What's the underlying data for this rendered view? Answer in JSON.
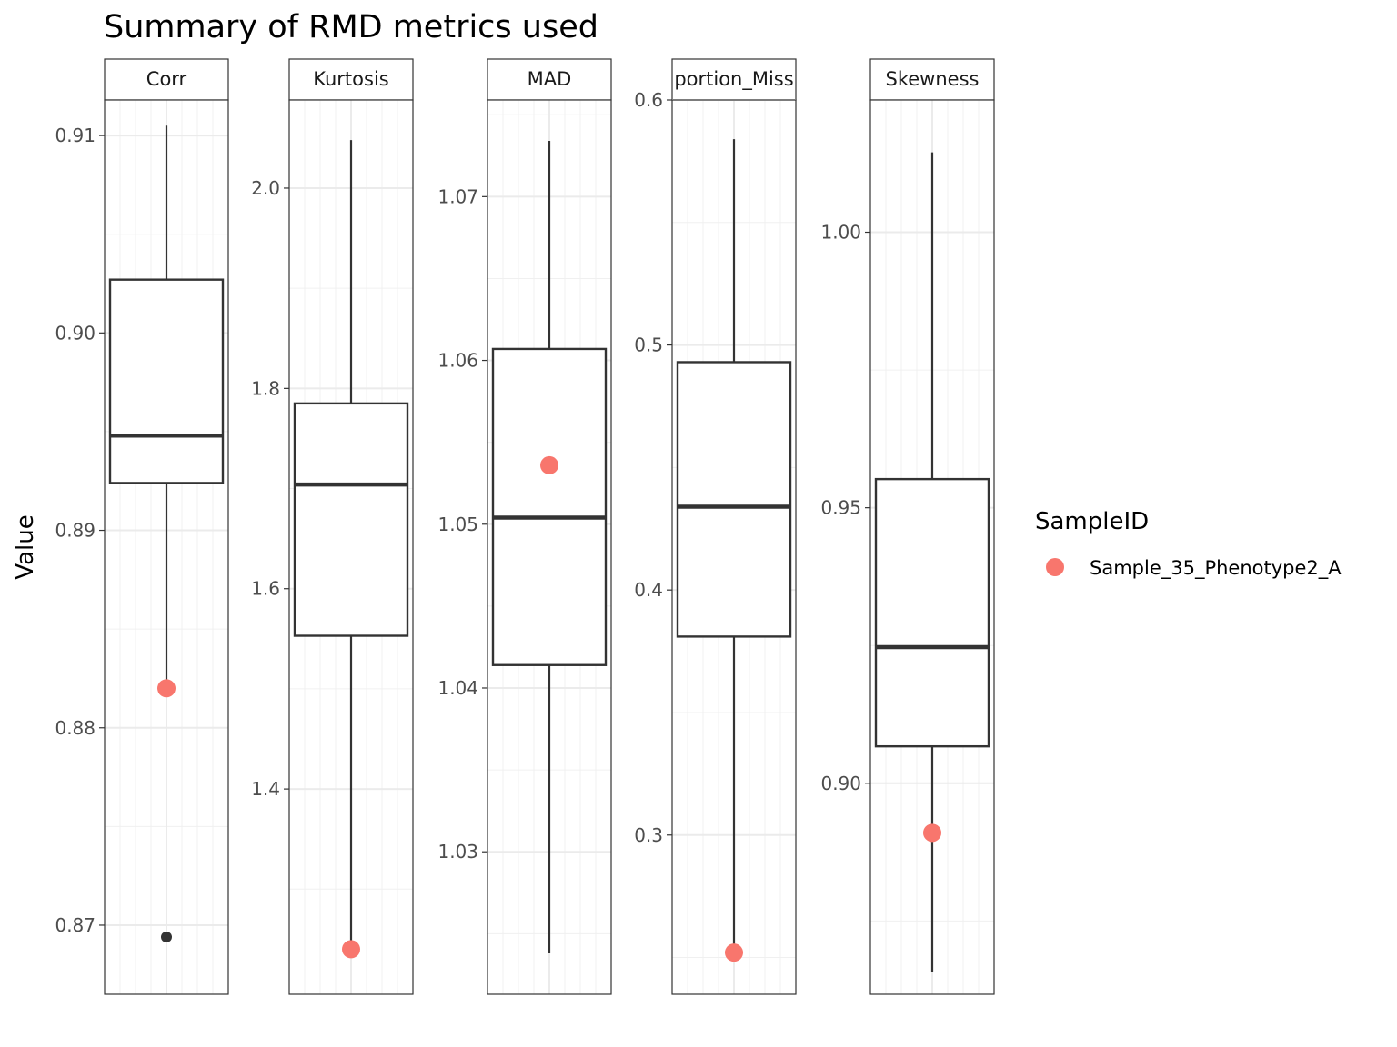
{
  "chart_data": {
    "type": "boxplot",
    "title": "Summary of RMD metrics used",
    "xlabel": "",
    "ylabel": "Value",
    "grid": true,
    "legend": {
      "title": "SampleID",
      "position": "right",
      "entries": [
        {
          "label": "Sample_35_Phenotype2_A",
          "color": "#F8766D"
        }
      ]
    },
    "colors": {
      "highlight": "#F8766D",
      "box": "#333333",
      "outlier": "#333333"
    },
    "panels": [
      {
        "name": "Corr",
        "ylim": [
          0.8665,
          0.9118
        ],
        "ticks": [
          0.87,
          0.88,
          0.89,
          0.9,
          0.91
        ],
        "tick_labels": [
          "0.87",
          "0.88",
          "0.89",
          "0.90",
          "0.91"
        ],
        "box": {
          "whisker_low": 0.8824,
          "q1": 0.8924,
          "median": 0.8948,
          "q3": 0.9027,
          "whisker_high": 0.9105
        },
        "outliers": [
          0.8694
        ],
        "highlight": 0.882
      },
      {
        "name": "Kurtosis",
        "ylim": [
          1.195,
          2.088
        ],
        "ticks": [
          1.4,
          1.6,
          1.8,
          2.0
        ],
        "tick_labels": [
          "1.4",
          "1.6",
          "1.8",
          "2.0"
        ],
        "box": {
          "whisker_low": 1.24,
          "q1": 1.553,
          "median": 1.704,
          "q3": 1.785,
          "whisker_high": 2.048
        },
        "outliers": [],
        "highlight": 1.24
      },
      {
        "name": "MAD",
        "ylim": [
          1.0213,
          1.0759
        ],
        "ticks": [
          1.03,
          1.04,
          1.05,
          1.06,
          1.07
        ],
        "tick_labels": [
          "1.03",
          "1.04",
          "1.05",
          "1.06",
          "1.07"
        ],
        "box": {
          "whisker_low": 1.0238,
          "q1": 1.0414,
          "median": 1.0504,
          "q3": 1.0607,
          "whisker_high": 1.0734
        },
        "outliers": [],
        "highlight": 1.0536
      },
      {
        "name": "Proportion_Missing",
        "display_name": "portion_Miss",
        "ylim": [
          0.235,
          0.6
        ],
        "ticks": [
          0.3,
          0.4,
          0.5,
          0.6
        ],
        "tick_labels": [
          "0.3",
          "0.4",
          "0.5",
          "0.6"
        ],
        "box": {
          "whisker_low": 0.252,
          "q1": 0.381,
          "median": 0.434,
          "q3": 0.493,
          "whisker_high": 0.584
        },
        "outliers": [],
        "highlight": 0.252
      },
      {
        "name": "Skewness",
        "ylim": [
          0.8617,
          1.024
        ],
        "ticks": [
          0.9,
          0.95,
          1.0
        ],
        "tick_labels": [
          "0.90",
          "0.95",
          "1.00"
        ],
        "box": {
          "whisker_low": 0.8657,
          "q1": 0.9067,
          "median": 0.9247,
          "q3": 0.9552,
          "whisker_high": 1.0145
        },
        "outliers": [],
        "highlight": 0.891
      }
    ]
  }
}
